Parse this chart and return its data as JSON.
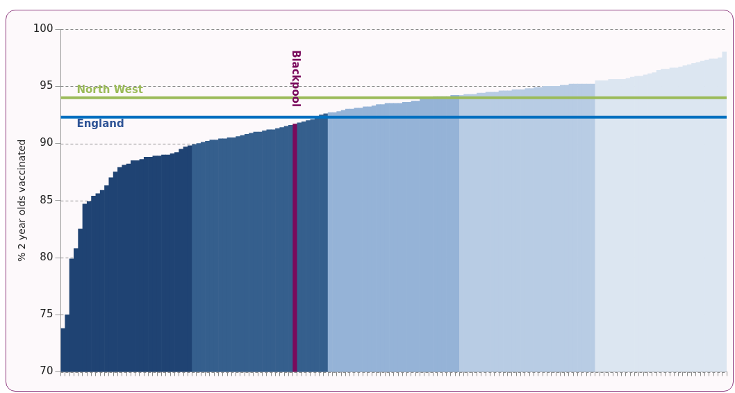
{
  "chart_data": {
    "type": "bar",
    "ylabel": "% 2 year olds vaccinated",
    "categories": [
      null,
      null,
      null,
      null,
      null,
      null,
      null,
      null,
      null,
      null,
      null,
      null,
      null,
      null,
      null,
      null,
      null,
      null,
      null,
      null,
      null,
      null,
      null,
      null,
      null,
      null,
      null,
      null,
      null,
      null,
      null,
      null,
      null,
      null,
      null,
      null,
      null,
      null,
      null,
      null,
      null,
      null,
      null,
      null,
      null,
      null,
      null,
      null,
      null,
      null,
      null,
      null,
      null,
      null,
      null,
      null,
      null,
      null,
      null,
      null,
      null,
      null,
      null,
      null,
      null,
      null,
      null,
      null,
      null,
      null,
      null,
      null,
      null,
      null,
      null,
      null,
      null,
      null,
      null,
      null,
      null,
      null,
      null,
      null,
      null,
      null,
      null,
      null,
      null,
      null,
      null,
      null,
      null,
      null,
      null,
      null,
      null,
      null,
      null,
      null,
      null,
      null,
      null,
      null,
      null,
      null,
      null,
      null,
      null,
      null,
      null,
      null,
      null,
      null,
      null,
      null,
      null,
      null,
      null,
      null,
      null,
      null,
      null,
      null,
      null,
      null,
      null,
      null,
      null,
      null,
      null,
      null,
      null,
      null,
      null,
      null,
      null,
      null,
      null,
      null,
      null,
      null,
      null,
      null,
      null,
      null,
      null,
      null,
      null,
      null,
      null,
      null
    ],
    "values": [
      73.8,
      75.0,
      79.9,
      80.8,
      82.5,
      84.7,
      84.9,
      85.4,
      85.6,
      85.9,
      86.3,
      87.0,
      87.5,
      87.9,
      88.1,
      88.2,
      88.5,
      88.5,
      88.6,
      88.8,
      88.8,
      88.9,
      88.9,
      89.0,
      89.0,
      89.1,
      89.2,
      89.5,
      89.7,
      89.8,
      89.9,
      90.0,
      90.1,
      90.2,
      90.3,
      90.3,
      90.4,
      90.4,
      90.5,
      90.5,
      90.6,
      90.7,
      90.8,
      90.9,
      91.0,
      91.0,
      91.1,
      91.2,
      91.2,
      91.3,
      91.4,
      91.5,
      91.6,
      91.7,
      91.8,
      91.9,
      92.0,
      92.1,
      92.3,
      92.5,
      92.6,
      92.7,
      92.7,
      92.8,
      92.9,
      93.0,
      93.0,
      93.1,
      93.1,
      93.2,
      93.2,
      93.3,
      93.4,
      93.4,
      93.5,
      93.5,
      93.5,
      93.5,
      93.6,
      93.6,
      93.7,
      93.7,
      94.0,
      94.0,
      94.0,
      94.1,
      94.1,
      94.1,
      94.1,
      94.2,
      94.2,
      94.2,
      94.3,
      94.3,
      94.3,
      94.4,
      94.4,
      94.5,
      94.5,
      94.5,
      94.6,
      94.6,
      94.6,
      94.7,
      94.7,
      94.7,
      94.8,
      94.8,
      94.9,
      94.9,
      95.0,
      95.0,
      95.0,
      95.0,
      95.1,
      95.1,
      95.2,
      95.2,
      95.2,
      95.2,
      95.2,
      95.2,
      95.5,
      95.5,
      95.5,
      95.6,
      95.6,
      95.6,
      95.6,
      95.7,
      95.8,
      95.9,
      95.9,
      96.0,
      96.1,
      96.2,
      96.4,
      96.5,
      96.5,
      96.6,
      96.6,
      96.7,
      96.8,
      96.9,
      97.0,
      97.1,
      97.2,
      97.3,
      97.4,
      97.4,
      97.5,
      98.0
    ],
    "colors": [
      "#1f4373",
      "#1f4373",
      "#1f4373",
      "#1f4373",
      "#1f4373",
      "#1f4373",
      "#1f4373",
      "#1f4373",
      "#1f4373",
      "#1f4373",
      "#1f4373",
      "#1f4373",
      "#1f4373",
      "#1f4373",
      "#1f4373",
      "#1f4373",
      "#1f4373",
      "#1f4373",
      "#1f4373",
      "#1f4373",
      "#1f4373",
      "#1f4373",
      "#1f4373",
      "#1f4373",
      "#1f4373",
      "#1f4373",
      "#1f4373",
      "#1f4373",
      "#1f4373",
      "#1f4373",
      "#355f8d",
      "#355f8d",
      "#355f8d",
      "#355f8d",
      "#355f8d",
      "#355f8d",
      "#355f8d",
      "#355f8d",
      "#355f8d",
      "#355f8d",
      "#355f8d",
      "#355f8d",
      "#355f8d",
      "#355f8d",
      "#355f8d",
      "#355f8d",
      "#355f8d",
      "#355f8d",
      "#355f8d",
      "#355f8d",
      "#355f8d",
      "#355f8d",
      "#355f8d",
      "#7a0a5c",
      "#355f8d",
      "#355f8d",
      "#355f8d",
      "#355f8d",
      "#355f8d",
      "#355f8d",
      "#355f8d",
      "#95b3d7",
      "#95b3d7",
      "#95b3d7",
      "#95b3d7",
      "#95b3d7",
      "#95b3d7",
      "#95b3d7",
      "#95b3d7",
      "#95b3d7",
      "#95b3d7",
      "#95b3d7",
      "#95b3d7",
      "#95b3d7",
      "#95b3d7",
      "#95b3d7",
      "#95b3d7",
      "#95b3d7",
      "#95b3d7",
      "#95b3d7",
      "#95b3d7",
      "#95b3d7",
      "#95b3d7",
      "#95b3d7",
      "#95b3d7",
      "#95b3d7",
      "#95b3d7",
      "#95b3d7",
      "#95b3d7",
      "#95b3d7",
      "#95b3d7",
      "#b8cce4",
      "#b8cce4",
      "#b8cce4",
      "#b8cce4",
      "#b8cce4",
      "#b8cce4",
      "#b8cce4",
      "#b8cce4",
      "#b8cce4",
      "#b8cce4",
      "#b8cce4",
      "#b8cce4",
      "#b8cce4",
      "#b8cce4",
      "#b8cce4",
      "#b8cce4",
      "#b8cce4",
      "#b8cce4",
      "#b8cce4",
      "#b8cce4",
      "#b8cce4",
      "#b8cce4",
      "#b8cce4",
      "#b8cce4",
      "#b8cce4",
      "#b8cce4",
      "#b8cce4",
      "#b8cce4",
      "#b8cce4",
      "#b8cce4",
      "#b8cce4",
      "#dce6f1",
      "#dce6f1",
      "#dce6f1",
      "#dce6f1",
      "#dce6f1",
      "#dce6f1",
      "#dce6f1",
      "#dce6f1",
      "#dce6f1",
      "#dce6f1",
      "#dce6f1",
      "#dce6f1",
      "#dce6f1",
      "#dce6f1",
      "#dce6f1",
      "#dce6f1",
      "#dce6f1",
      "#dce6f1",
      "#dce6f1",
      "#dce6f1",
      "#dce6f1",
      "#dce6f1",
      "#dce6f1",
      "#dce6f1",
      "#dce6f1",
      "#dce6f1",
      "#dce6f1",
      "#dce6f1",
      "#dce6f1",
      "#dce6f1"
    ],
    "ylim": [
      70,
      100
    ],
    "yticks": [
      70,
      75,
      80,
      85,
      90,
      95,
      100
    ],
    "grid": "y",
    "ref_lines": [
      {
        "axis": "y",
        "value": 94.0,
        "label": "North West",
        "color": "#9bbb59"
      },
      {
        "axis": "y",
        "value": 92.3,
        "label": "England",
        "color": "#0070c0"
      }
    ],
    "annotations": [
      "Blackpool"
    ]
  }
}
